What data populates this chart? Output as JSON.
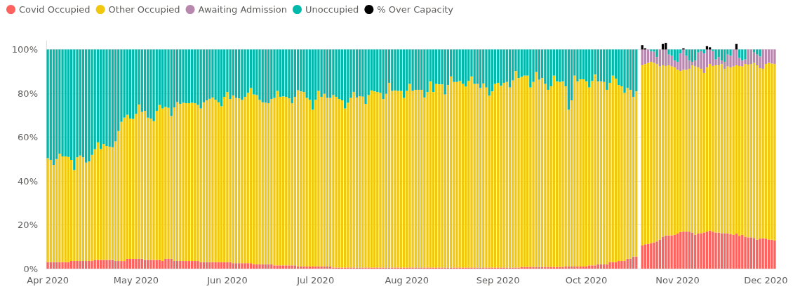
{
  "chart_data": {
    "type": "bar",
    "stacked": true,
    "legend": "top left",
    "grid": "y",
    "ylim": [
      0,
      104
    ],
    "yticks": [
      {
        "value": 0,
        "label": "0%"
      },
      {
        "value": 20,
        "label": "20%"
      },
      {
        "value": 40,
        "label": "40%"
      },
      {
        "value": 60,
        "label": "60%"
      },
      {
        "value": 80,
        "label": "80%"
      },
      {
        "value": 100,
        "label": "100%"
      }
    ],
    "xlim": [
      "2020-03-31T12:00",
      "2020-12-04T12:00"
    ],
    "xticks": [
      {
        "value": "2020-04-01",
        "label": "Apr 2020"
      },
      {
        "value": "2020-05-01",
        "label": "May 2020"
      },
      {
        "value": "2020-06-01",
        "label": "Jun 2020"
      },
      {
        "value": "2020-07-01",
        "label": "Jul 2020"
      },
      {
        "value": "2020-08-01",
        "label": "Aug 2020"
      },
      {
        "value": "2020-09-01",
        "label": "Sep 2020"
      },
      {
        "value": "2020-10-01",
        "label": "Oct 2020"
      },
      {
        "value": "2020-11-01",
        "label": "Nov 2020"
      },
      {
        "value": "2020-12-01",
        "label": "Dec 2020"
      }
    ],
    "x": [
      "2020-04-01",
      "2020-04-02",
      "2020-04-03",
      "2020-04-04",
      "2020-04-05",
      "2020-04-06",
      "2020-04-07",
      "2020-04-08",
      "2020-04-09",
      "2020-04-10",
      "2020-04-11",
      "2020-04-12",
      "2020-04-13",
      "2020-04-14",
      "2020-04-15",
      "2020-04-16",
      "2020-04-17",
      "2020-04-18",
      "2020-04-19",
      "2020-04-20",
      "2020-04-21",
      "2020-04-22",
      "2020-04-23",
      "2020-04-24",
      "2020-04-25",
      "2020-04-26",
      "2020-04-27",
      "2020-04-28",
      "2020-04-29",
      "2020-04-30",
      "2020-05-01",
      "2020-05-02",
      "2020-05-03",
      "2020-05-04",
      "2020-05-05",
      "2020-05-06",
      "2020-05-07",
      "2020-05-08",
      "2020-05-09",
      "2020-05-10",
      "2020-05-11",
      "2020-05-12",
      "2020-05-13",
      "2020-05-14",
      "2020-05-15",
      "2020-05-16",
      "2020-05-17",
      "2020-05-18",
      "2020-05-19",
      "2020-05-20",
      "2020-05-21",
      "2020-05-22",
      "2020-05-23",
      "2020-05-24",
      "2020-05-25",
      "2020-05-26",
      "2020-05-27",
      "2020-05-28",
      "2020-05-29",
      "2020-05-30",
      "2020-05-31",
      "2020-06-01",
      "2020-06-02",
      "2020-06-03",
      "2020-06-04",
      "2020-06-05",
      "2020-06-06",
      "2020-06-07",
      "2020-06-08",
      "2020-06-09",
      "2020-06-10",
      "2020-06-11",
      "2020-06-12",
      "2020-06-13",
      "2020-06-14",
      "2020-06-15",
      "2020-06-16",
      "2020-06-17",
      "2020-06-18",
      "2020-06-19",
      "2020-06-20",
      "2020-06-21",
      "2020-06-22",
      "2020-06-23",
      "2020-06-24",
      "2020-06-25",
      "2020-06-26",
      "2020-06-27",
      "2020-06-28",
      "2020-06-29",
      "2020-06-30",
      "2020-07-01",
      "2020-07-02",
      "2020-07-03",
      "2020-07-04",
      "2020-07-05",
      "2020-07-06",
      "2020-07-07",
      "2020-07-08",
      "2020-07-09",
      "2020-07-10",
      "2020-07-11",
      "2020-07-12",
      "2020-07-13",
      "2020-07-14",
      "2020-07-15",
      "2020-07-16",
      "2020-07-17",
      "2020-07-18",
      "2020-07-19",
      "2020-07-20",
      "2020-07-21",
      "2020-07-22",
      "2020-07-23",
      "2020-07-24",
      "2020-07-25",
      "2020-07-26",
      "2020-07-27",
      "2020-07-28",
      "2020-07-29",
      "2020-07-30",
      "2020-07-31",
      "2020-08-01",
      "2020-08-02",
      "2020-08-03",
      "2020-08-04",
      "2020-08-05",
      "2020-08-06",
      "2020-08-07",
      "2020-08-08",
      "2020-08-09",
      "2020-08-10",
      "2020-08-11",
      "2020-08-12",
      "2020-08-13",
      "2020-08-14",
      "2020-08-15",
      "2020-08-16",
      "2020-08-17",
      "2020-08-18",
      "2020-08-19",
      "2020-08-20",
      "2020-08-21",
      "2020-08-22",
      "2020-08-23",
      "2020-08-24",
      "2020-08-25",
      "2020-08-26",
      "2020-08-27",
      "2020-08-28",
      "2020-08-29",
      "2020-08-30",
      "2020-08-31",
      "2020-09-01",
      "2020-09-02",
      "2020-09-03",
      "2020-09-04",
      "2020-09-05",
      "2020-09-06",
      "2020-09-07",
      "2020-09-08",
      "2020-09-09",
      "2020-09-10",
      "2020-09-11",
      "2020-09-12",
      "2020-09-13",
      "2020-09-14",
      "2020-09-15",
      "2020-09-16",
      "2020-09-17",
      "2020-09-18",
      "2020-09-19",
      "2020-09-20",
      "2020-09-21",
      "2020-09-22",
      "2020-09-23",
      "2020-09-24",
      "2020-09-25",
      "2020-09-26",
      "2020-09-27",
      "2020-09-28",
      "2020-09-29",
      "2020-09-30",
      "2020-10-01",
      "2020-10-02",
      "2020-10-03",
      "2020-10-04",
      "2020-10-05",
      "2020-10-06",
      "2020-10-07",
      "2020-10-08",
      "2020-10-09",
      "2020-10-10",
      "2020-10-11",
      "2020-10-12",
      "2020-10-13",
      "2020-10-14",
      "2020-10-15",
      "2020-10-16",
      "2020-10-17",
      "2020-10-18",
      "2020-10-19",
      "2020-10-20",
      "2020-10-21",
      "2020-10-22",
      "2020-10-23",
      "2020-10-24",
      "2020-10-25",
      "2020-10-26",
      "2020-10-27",
      "2020-10-28",
      "2020-10-29",
      "2020-10-30",
      "2020-10-31",
      "2020-11-01",
      "2020-11-02",
      "2020-11-03",
      "2020-11-04",
      "2020-11-05",
      "2020-11-06",
      "2020-11-07",
      "2020-11-08",
      "2020-11-09",
      "2020-11-10",
      "2020-11-11",
      "2020-11-12",
      "2020-11-13",
      "2020-11-14",
      "2020-11-15",
      "2020-11-16",
      "2020-11-17",
      "2020-11-18",
      "2020-11-19",
      "2020-11-20",
      "2020-11-21",
      "2020-11-22",
      "2020-11-23",
      "2020-11-24",
      "2020-11-25",
      "2020-11-26",
      "2020-11-27",
      "2020-11-28",
      "2020-11-29",
      "2020-11-30",
      "2020-12-01",
      "2020-12-02",
      "2020-12-03",
      "2020-12-04"
    ],
    "series": [
      {
        "name": "Covid Occupied",
        "color": "#fd625e",
        "values": [
          3,
          3,
          3,
          3,
          3,
          3,
          3,
          3,
          3.5,
          3.5,
          3.5,
          3.5,
          3.5,
          3.5,
          3.5,
          3.5,
          4,
          4,
          4,
          4,
          4,
          4,
          4,
          3.5,
          3.5,
          3.5,
          3.5,
          4.5,
          4.5,
          4.5,
          4.5,
          4.5,
          4.5,
          4,
          4,
          4,
          4,
          4,
          4,
          3.5,
          4.5,
          4.5,
          4.5,
          3.5,
          3.5,
          3.5,
          3.5,
          3.5,
          3.5,
          3.5,
          3.5,
          3.5,
          3,
          3,
          3,
          3,
          3,
          3,
          3,
          3,
          3,
          3,
          3,
          2.5,
          2.5,
          2.5,
          2.5,
          2.5,
          2.5,
          2.5,
          2,
          2,
          2,
          2,
          2,
          2,
          2,
          1.5,
          1.5,
          1.5,
          1.5,
          1.5,
          1.5,
          1.5,
          1.5,
          1,
          1,
          1,
          1,
          1,
          1,
          1,
          1,
          1,
          1,
          1,
          1,
          0.5,
          0.5,
          0.5,
          0.5,
          0.5,
          0.5,
          0.5,
          0.5,
          0.5,
          0.5,
          0.5,
          0.5,
          0.5,
          0.5,
          0.5,
          0.5,
          0.5,
          0.5,
          0.5,
          0.5,
          0.5,
          0.5,
          0.5,
          0.5,
          0.5,
          0.5,
          0.5,
          0.5,
          0.5,
          0.5,
          0.5,
          0.5,
          0.5,
          0.5,
          0.5,
          0.5,
          0.5,
          0.5,
          0.5,
          0.5,
          0.5,
          0.5,
          0.5,
          0.5,
          0.5,
          0.5,
          0.5,
          0.5,
          0.5,
          0.5,
          0.5,
          0.5,
          0.5,
          0.5,
          0.5,
          0.5,
          0.5,
          0.5,
          0.5,
          0.5,
          0.5,
          0.5,
          0.5,
          0.5,
          0.8,
          0.8,
          0.8,
          0.8,
          0.8,
          0.8,
          0.8,
          0.8,
          0.8,
          0.8,
          0.8,
          0.8,
          0.8,
          0.8,
          0.8,
          1,
          1,
          1,
          1,
          1,
          1,
          1,
          1,
          1.5,
          1.5,
          1.5,
          2,
          2,
          2,
          2,
          3,
          3,
          3,
          3.5,
          3.5,
          3.5,
          4.5,
          4.5,
          5.5,
          5.5,
          null,
          10.6,
          11.1,
          11.3,
          11.6,
          12,
          12.4,
          13.3,
          14.6,
          15.1,
          15.2,
          15.2,
          15.4,
          16,
          16.7,
          16.9,
          16.9,
          16.9,
          16.5,
          15.4,
          16,
          16.2,
          16.5,
          16.9,
          17.4,
          16.9,
          16.5,
          16.5,
          16.2,
          16.2,
          16,
          15.8,
          15.4,
          16,
          15,
          15.4,
          14.6,
          14.3,
          14.3,
          14,
          13.2,
          13.7,
          13.9,
          13.7,
          13.3,
          13.2,
          12.8
        ]
      },
      {
        "name": "Other Occupied",
        "color": "#f2c80f",
        "values": [
          47.4,
          46.6,
          44.4,
          47,
          49.5,
          48.2,
          48.2,
          48,
          46.1,
          41.5,
          47.3,
          48.1,
          47.3,
          44.9,
          45.5,
          48.4,
          50.5,
          53.6,
          50.6,
          52.9,
          52,
          51.6,
          51.4,
          54.6,
          59.3,
          63.5,
          65.4,
          65.7,
          64,
          63.8,
          66.1,
          70.4,
          67,
          68,
          64.9,
          64.5,
          63.3,
          68,
          70.7,
          69.6,
          69.3,
          68.9,
          65.1,
          70.1,
          72.5,
          71.7,
          72.2,
          72,
          72,
          72.2,
          72,
          71.2,
          70.1,
          72.9,
          73.8,
          74.5,
          75.1,
          74,
          72.9,
          71.1,
          75.4,
          77.6,
          74.4,
          76.5,
          75.4,
          75.2,
          74.5,
          75.9,
          77.7,
          79.9,
          77.5,
          77.2,
          75,
          73.9,
          73.7,
          73.5,
          75.4,
          76.4,
          79.6,
          76.9,
          77.1,
          76.9,
          76.2,
          74,
          76.9,
          80.4,
          79.9,
          79.6,
          76.9,
          76,
          71.5,
          76,
          80.1,
          77.4,
          78.8,
          76.9,
          76.9,
          78.7,
          77.9,
          76.9,
          76.3,
          72.6,
          75.2,
          77.4,
          80.1,
          77.6,
          78.2,
          78,
          74.7,
          78.7,
          80.8,
          80.4,
          80.1,
          79.7,
          76.9,
          79.3,
          84.3,
          80.6,
          80.8,
          80.6,
          80.6,
          77.4,
          80.6,
          83.8,
          80.6,
          81.1,
          81.1,
          81.1,
          77.6,
          80.1,
          84.9,
          80.1,
          83.8,
          83.6,
          83.6,
          79,
          83.3,
          87.2,
          84.7,
          84.7,
          85.1,
          83.8,
          82.6,
          85.1,
          87.2,
          83.8,
          83.8,
          81.9,
          84,
          82.2,
          78.4,
          80.4,
          83.8,
          84.3,
          82.9,
          84.3,
          84.7,
          82.2,
          85.4,
          89.7,
          86.5,
          86.7,
          87.3,
          87.3,
          81.9,
          84.4,
          88.9,
          85.4,
          86.2,
          83.5,
          80.8,
          82.4,
          87.3,
          84.6,
          84.4,
          84.6,
          82.2,
          71.5,
          75.8,
          87.1,
          84.4,
          85.4,
          85.4,
          84.4,
          81.2,
          84.1,
          87.1,
          83.4,
          83.4,
          83.2,
          79.6,
          81.8,
          85.1,
          83.7,
          80.3,
          79.7,
          76.7,
          77.9,
          77.1,
          72.9,
          75.4,
          null,
          82.2,
          82.3,
          82.6,
          82.8,
          81.9,
          81,
          79,
          78.2,
          77.4,
          77.6,
          77.1,
          76.4,
          74.7,
          73.5,
          73.8,
          73.8,
          74.3,
          76.3,
          76.9,
          75.8,
          75,
          72.8,
          74.9,
          76,
          75.6,
          76.3,
          76.3,
          77.2,
          75,
          76.3,
          76,
          76.9,
          76.8,
          77.5,
          76.9,
          78.8,
          78.8,
          79.1,
          79.9,
          79.6,
          77.8,
          77.3,
          79.7,
          80.6,
          80.4,
          80.6
        ]
      },
      {
        "name": "Awaiting Admission",
        "color": "#b887ad",
        "values": [
          null,
          null,
          null,
          null,
          null,
          null,
          null,
          null,
          null,
          null,
          null,
          null,
          null,
          null,
          null,
          null,
          null,
          null,
          null,
          null,
          null,
          null,
          null,
          null,
          null,
          null,
          null,
          null,
          null,
          null,
          null,
          null,
          null,
          null,
          null,
          null,
          null,
          null,
          null,
          null,
          null,
          null,
          null,
          null,
          null,
          null,
          null,
          null,
          null,
          null,
          null,
          null,
          null,
          null,
          null,
          null,
          null,
          null,
          null,
          null,
          null,
          null,
          null,
          null,
          null,
          null,
          null,
          null,
          null,
          null,
          null,
          null,
          null,
          null,
          null,
          null,
          null,
          null,
          null,
          null,
          null,
          null,
          null,
          null,
          null,
          null,
          null,
          null,
          null,
          null,
          null,
          null,
          null,
          null,
          null,
          null,
          null,
          null,
          null,
          null,
          null,
          null,
          null,
          null,
          null,
          null,
          null,
          null,
          null,
          null,
          null,
          null,
          null,
          null,
          null,
          null,
          null,
          null,
          null,
          null,
          null,
          null,
          null,
          null,
          null,
          null,
          null,
          null,
          null,
          null,
          null,
          null,
          null,
          null,
          null,
          null,
          null,
          null,
          null,
          null,
          null,
          null,
          null,
          null,
          null,
          null,
          null,
          null,
          null,
          null,
          null,
          null,
          null,
          null,
          null,
          null,
          null,
          null,
          null,
          null,
          null,
          null,
          null,
          null,
          null,
          null,
          null,
          null,
          null,
          null,
          null,
          null,
          null,
          null,
          null,
          null,
          null,
          null,
          null,
          null,
          null,
          null,
          null,
          null,
          null,
          null,
          null,
          null,
          null,
          null,
          null,
          null,
          null,
          null,
          null,
          null,
          null,
          null,
          null,
          null,
          null,
          null,
          7.2,
          6.6,
          6.1,
          4.9,
          5.1,
          3.2,
          7.7,
          7.2,
          7.5,
          4.9,
          4.8,
          3.2,
          3.7,
          8,
          9.3,
          6.4,
          3.8,
          1.6,
          2.7,
          6.9,
          8.1,
          8.9,
          8.2,
          6.6,
          6.8,
          2.7,
          3.8,
          1.6,
          3.2,
          5.4,
          5.3,
          7.7,
          7.2,
          3.6,
          2.7,
          2.1,
          6.9,
          6.6,
          4.8,
          4.9,
          5.3,
          8.8,
          6.6,
          6.1,
          6.4,
          6.6
        ]
      },
      {
        "name": "Unoccupied",
        "color": "#01b8aa",
        "values": [
          49.6,
          50.4,
          52.6,
          50,
          47.5,
          48.8,
          48.8,
          49,
          50.4,
          55,
          49.2,
          48.4,
          49.2,
          51.6,
          51,
          48.1,
          45.5,
          42.4,
          45.4,
          43.1,
          44,
          44.4,
          44.6,
          41.9,
          37.2,
          33,
          31.1,
          29.8,
          31.5,
          31.7,
          29.4,
          25.1,
          28.5,
          28,
          31.1,
          31.5,
          32.7,
          28,
          25.3,
          26.9,
          26.2,
          26.6,
          30.4,
          26.4,
          24,
          24.8,
          24.3,
          24.5,
          24.5,
          24.3,
          24.5,
          25.3,
          26.9,
          24.1,
          23.2,
          22.5,
          21.9,
          23,
          24.1,
          25.9,
          21.6,
          19.4,
          22.6,
          21,
          22.1,
          22.3,
          23,
          21.6,
          19.8,
          17.6,
          20.5,
          20.8,
          23,
          24.1,
          24.3,
          24.5,
          22.6,
          22.1,
          18.9,
          21.6,
          21.4,
          21.6,
          22.3,
          24.5,
          21.6,
          18.6,
          19.1,
          19.4,
          22.1,
          23,
          27.5,
          23,
          18.9,
          21.6,
          20.2,
          22.1,
          22.1,
          20.8,
          21.6,
          22.6,
          23.2,
          26.9,
          24.3,
          22.1,
          19.4,
          21.9,
          21.3,
          21.5,
          24.8,
          20.8,
          18.7,
          19.1,
          19.4,
          19.8,
          22.6,
          20.2,
          15.2,
          18.9,
          18.7,
          18.9,
          18.9,
          22.1,
          18.9,
          15.7,
          18.9,
          18.4,
          18.4,
          18.4,
          21.9,
          19.4,
          14.6,
          19.4,
          15.7,
          15.9,
          15.9,
          20.5,
          16.2,
          12.3,
          14.8,
          14.8,
          14.4,
          15.7,
          16.9,
          14.4,
          12.3,
          15.7,
          15.7,
          17.6,
          15.5,
          17.3,
          21.1,
          19.1,
          15.7,
          15.2,
          16.6,
          15.2,
          14.8,
          17.3,
          14.1,
          9.8,
          13,
          12.5,
          11.9,
          11.9,
          17.3,
          14.8,
          10.3,
          13.8,
          13,
          15.7,
          18.4,
          16.8,
          11.9,
          14.6,
          14.8,
          14.6,
          16.8,
          27.5,
          23.2,
          11.9,
          14.6,
          13.6,
          13.6,
          14.6,
          17.3,
          14.4,
          11.4,
          14.6,
          14.6,
          14.8,
          18.4,
          15.2,
          11.9,
          13.3,
          16.2,
          16.8,
          19.8,
          17.6,
          18.4,
          21.6,
          19.1,
          null,
          null,
          null,
          null,
          0.7,
          1,
          3.4,
          null,
          null,
          null,
          2.3,
          2.9,
          5,
          5.6,
          1.8,
          null,
          2.9,
          5,
          5.6,
          5,
          1.3,
          0.7,
          1.8,
          null,
          null,
          0.7,
          4.5,
          3.4,
          5,
          5.6,
          2.3,
          2.9,
          null,
          null,
          3.9,
          5,
          4.5,
          null,
          null,
          1.3,
          2.3,
          3.2,
          null,
          null,
          null,
          null,
          null
        ]
      },
      {
        "name": "% Over Capacity",
        "color": "#000000",
        "values": [
          null,
          null,
          null,
          null,
          null,
          null,
          null,
          null,
          null,
          null,
          null,
          null,
          null,
          null,
          null,
          null,
          null,
          null,
          null,
          null,
          null,
          null,
          null,
          null,
          null,
          null,
          null,
          null,
          null,
          null,
          null,
          null,
          null,
          null,
          null,
          null,
          null,
          null,
          null,
          null,
          null,
          null,
          null,
          null,
          null,
          null,
          null,
          null,
          null,
          null,
          null,
          null,
          null,
          null,
          null,
          null,
          null,
          null,
          null,
          null,
          null,
          null,
          null,
          null,
          null,
          null,
          null,
          null,
          null,
          null,
          null,
          null,
          null,
          null,
          null,
          null,
          null,
          null,
          null,
          null,
          null,
          null,
          null,
          null,
          null,
          null,
          null,
          null,
          null,
          null,
          null,
          null,
          null,
          null,
          null,
          null,
          null,
          null,
          null,
          null,
          null,
          null,
          null,
          null,
          null,
          null,
          null,
          null,
          null,
          null,
          null,
          null,
          null,
          null,
          null,
          null,
          null,
          null,
          null,
          null,
          null,
          null,
          null,
          null,
          null,
          null,
          null,
          null,
          null,
          null,
          null,
          null,
          null,
          null,
          null,
          null,
          null,
          null,
          null,
          null,
          null,
          null,
          null,
          null,
          null,
          null,
          null,
          null,
          null,
          null,
          null,
          null,
          null,
          null,
          null,
          null,
          null,
          null,
          null,
          null,
          null,
          null,
          null,
          null,
          null,
          null,
          null,
          null,
          null,
          null,
          null,
          null,
          null,
          null,
          null,
          null,
          null,
          null,
          null,
          null,
          null,
          null,
          null,
          null,
          null,
          null,
          null,
          null,
          null,
          null,
          null,
          null,
          null,
          null,
          null,
          null,
          null,
          null,
          null,
          null,
          null,
          null,
          2,
          0.5,
          null,
          null,
          null,
          null,
          null,
          2.5,
          3,
          null,
          null,
          null,
          null,
          null,
          0.5,
          null,
          null,
          null,
          null,
          null,
          null,
          null,
          1.5,
          1,
          null,
          null,
          null,
          null,
          null,
          null,
          null,
          null,
          2.5,
          null,
          null,
          null,
          null,
          null,
          null,
          null,
          null,
          null,
          null,
          null,
          null,
          null
        ]
      }
    ]
  }
}
